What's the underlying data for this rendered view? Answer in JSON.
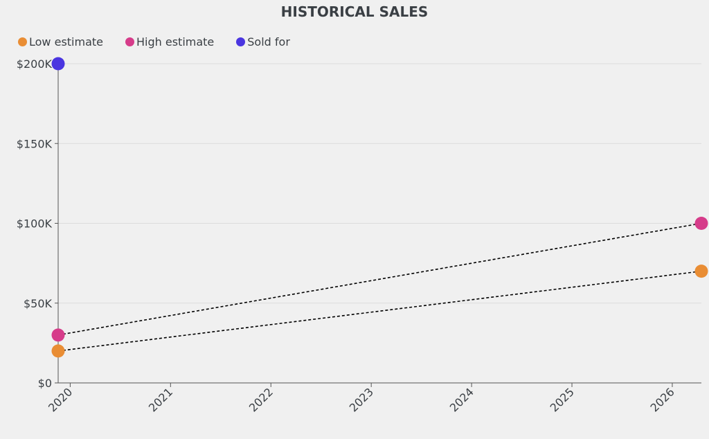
{
  "chart_data": {
    "type": "scatter",
    "title": "HISTORICAL SALES",
    "xlabel": "",
    "ylabel": "",
    "xlim": [
      2019.88,
      2026.29
    ],
    "ylim": [
      0,
      200000
    ],
    "x_ticks": [
      "2020",
      "2021",
      "2022",
      "2023",
      "2024",
      "2025",
      "2026"
    ],
    "y_ticks": [
      {
        "v": 0,
        "label": "$0"
      },
      {
        "v": 50000,
        "label": "$50K"
      },
      {
        "v": 100000,
        "label": "$100K"
      },
      {
        "v": 150000,
        "label": "$150K"
      },
      {
        "v": 200000,
        "label": "$200K"
      }
    ],
    "grid": "horizontal",
    "legend_position": "top-left",
    "series": [
      {
        "name": "Low estimate",
        "color": "#e98d34",
        "points": [
          {
            "x": 2019.88,
            "y": 20000
          },
          {
            "x": 2026.29,
            "y": 70000
          }
        ],
        "line": "dashed"
      },
      {
        "name": "High estimate",
        "color": "#d63c8a",
        "points": [
          {
            "x": 2019.88,
            "y": 30000
          },
          {
            "x": 2026.29,
            "y": 100000
          }
        ],
        "line": "dashed"
      },
      {
        "name": "Sold for",
        "color": "#4a35e0",
        "points": [
          {
            "x": 2019.88,
            "y": 200000
          }
        ],
        "line": "none"
      }
    ]
  }
}
